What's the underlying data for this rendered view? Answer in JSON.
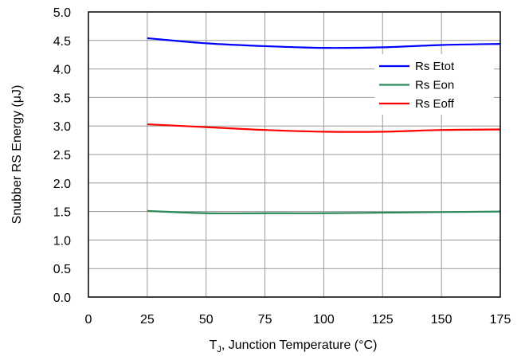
{
  "chart_data": {
    "type": "line",
    "xlabel_main": "T",
    "xlabel_sub": "J",
    "xlabel_rest": ", Junction Temperature (°C)",
    "ylabel": "Snubber RS Energy (μJ)",
    "xlim": [
      0,
      175
    ],
    "ylim": [
      0,
      5
    ],
    "xticks": [
      "0",
      "25",
      "50",
      "75",
      "100",
      "125",
      "150",
      "175"
    ],
    "yticks": [
      "0.0",
      "0.5",
      "1.0",
      "1.5",
      "2.0",
      "2.5",
      "3.0",
      "3.5",
      "4.0",
      "4.5",
      "5.0"
    ],
    "grid": true,
    "legend_position": "right",
    "series": [
      {
        "name": "Rs Etot",
        "color": "#0000ff",
        "x": [
          25,
          50,
          75,
          100,
          125,
          150,
          175
        ],
        "y": [
          4.54,
          4.45,
          4.4,
          4.37,
          4.38,
          4.42,
          4.44
        ]
      },
      {
        "name": "Rs Eon",
        "color": "#2e8b57",
        "x": [
          25,
          50,
          75,
          100,
          125,
          150,
          175
        ],
        "y": [
          1.51,
          1.47,
          1.47,
          1.47,
          1.48,
          1.49,
          1.5
        ]
      },
      {
        "name": "Rs Eoff",
        "color": "#ff0000",
        "x": [
          25,
          50,
          75,
          100,
          125,
          150,
          175
        ],
        "y": [
          3.03,
          2.98,
          2.93,
          2.9,
          2.9,
          2.93,
          2.94
        ]
      }
    ]
  }
}
